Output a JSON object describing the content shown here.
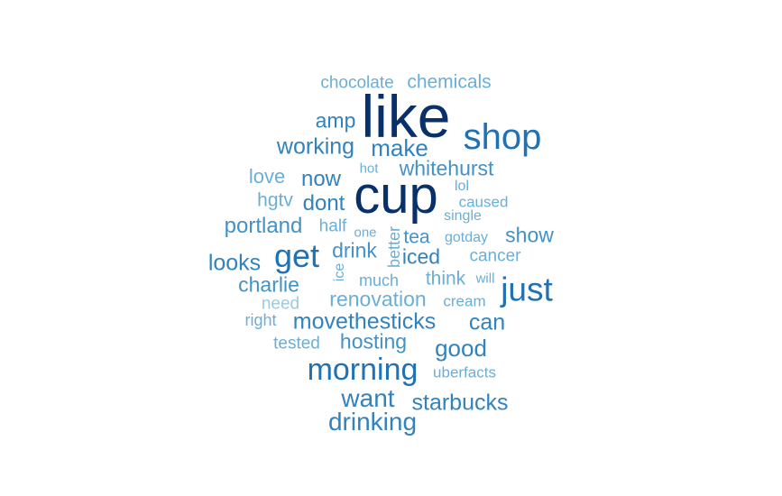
{
  "words": [
    {
      "text": "like",
      "color": "#08306b"
    },
    {
      "text": "cup",
      "color": "#08306b"
    },
    {
      "text": "shop",
      "color": "#2171b5"
    },
    {
      "text": "morning",
      "color": "#2171b5"
    },
    {
      "text": "get",
      "color": "#2171b5"
    },
    {
      "text": "just",
      "color": "#2171b5"
    },
    {
      "text": "want",
      "color": "#3182bd"
    },
    {
      "text": "drinking",
      "color": "#3182bd"
    },
    {
      "text": "starbucks",
      "color": "#3182bd"
    },
    {
      "text": "good",
      "color": "#3182bd"
    },
    {
      "text": "movethesticks",
      "color": "#3182bd"
    },
    {
      "text": "hosting",
      "color": "#4292c6"
    },
    {
      "text": "can",
      "color": "#3182bd"
    },
    {
      "text": "make",
      "color": "#3182bd"
    },
    {
      "text": "working",
      "color": "#3182bd"
    },
    {
      "text": "whitehurst",
      "color": "#4292c6"
    },
    {
      "text": "now",
      "color": "#3182bd"
    },
    {
      "text": "dont",
      "color": "#3182bd"
    },
    {
      "text": "portland",
      "color": "#4292c6"
    },
    {
      "text": "looks",
      "color": "#3182bd"
    },
    {
      "text": "charlie",
      "color": "#4292c6"
    },
    {
      "text": "renovation",
      "color": "#6baed6"
    },
    {
      "text": "show",
      "color": "#4292c6"
    },
    {
      "text": "amp",
      "color": "#3182bd"
    },
    {
      "text": "drink",
      "color": "#4292c6"
    },
    {
      "text": "iced",
      "color": "#3182bd"
    },
    {
      "text": "tea",
      "color": "#4292c6"
    },
    {
      "text": "think",
      "color": "#6baed6"
    },
    {
      "text": "chemicals",
      "color": "#6baed6"
    },
    {
      "text": "chocolate",
      "color": "#6baed6"
    },
    {
      "text": "love",
      "color": "#6baed6"
    },
    {
      "text": "hgtv",
      "color": "#6baed6"
    },
    {
      "text": "cancer",
      "color": "#6baed6"
    },
    {
      "text": "half",
      "color": "#6baed6"
    },
    {
      "text": "need",
      "color": "#9ecae1"
    },
    {
      "text": "right",
      "color": "#6baed6"
    },
    {
      "text": "tested",
      "color": "#6baed6"
    },
    {
      "text": "much",
      "color": "#6baed6"
    },
    {
      "text": "cream",
      "color": "#6baed6"
    },
    {
      "text": "uberfacts",
      "color": "#6baed6"
    },
    {
      "text": "caused",
      "color": "#6baed6"
    },
    {
      "text": "single",
      "color": "#6baed6"
    },
    {
      "text": "lol",
      "color": "#6baed6"
    },
    {
      "text": "hot",
      "color": "#6baed6"
    },
    {
      "text": "one",
      "color": "#6baed6"
    },
    {
      "text": "gotday",
      "color": "#6baed6"
    },
    {
      "text": "will",
      "color": "#6baed6"
    },
    {
      "text": "better",
      "color": "#6baed6"
    },
    {
      "text": "ice",
      "color": "#6baed6"
    }
  ]
}
